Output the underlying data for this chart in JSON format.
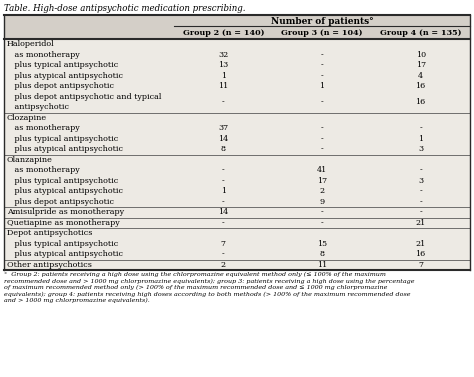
{
  "title": "Table. High-dose antipsychotic medication prescribing.",
  "header_main": "Number of patients°",
  "col_headers": [
    "Group 2 (n = 140)",
    "Group 3 (n = 104)",
    "Group 4 (n = 135)"
  ],
  "rows": [
    {
      "label": "Haloperidol",
      "indent": 0,
      "values": [
        "",
        "",
        ""
      ],
      "is_category": true,
      "separator_before": true
    },
    {
      "label": "   as monotherapy",
      "indent": 1,
      "values": [
        "32",
        "-",
        "10"
      ],
      "is_category": false,
      "separator_before": false
    },
    {
      "label": "   plus typical antipsychotic",
      "indent": 1,
      "values": [
        "13",
        "-",
        "17"
      ],
      "is_category": false,
      "separator_before": false
    },
    {
      "label": "   plus atypical antipsychotic",
      "indent": 1,
      "values": [
        "1",
        "-",
        "4"
      ],
      "is_category": false,
      "separator_before": false
    },
    {
      "label": "   plus depot antipsychotic",
      "indent": 1,
      "values": [
        "11",
        "1",
        "16"
      ],
      "is_category": false,
      "separator_before": false
    },
    {
      "label": "   plus depot antipsychotic and typical\n   antipsychotic",
      "indent": 1,
      "values": [
        "-",
        "-",
        "16"
      ],
      "is_category": false,
      "separator_before": false
    },
    {
      "label": "Clozapine",
      "indent": 0,
      "values": [
        "",
        "",
        ""
      ],
      "is_category": true,
      "separator_before": true
    },
    {
      "label": "   as monotherapy",
      "indent": 1,
      "values": [
        "37",
        "-",
        "-"
      ],
      "is_category": false,
      "separator_before": false
    },
    {
      "label": "   plus typical antipsychotic",
      "indent": 1,
      "values": [
        "14",
        "-",
        "1"
      ],
      "is_category": false,
      "separator_before": false
    },
    {
      "label": "   plus atypical antipsychotic",
      "indent": 1,
      "values": [
        "8",
        "-",
        "3"
      ],
      "is_category": false,
      "separator_before": false
    },
    {
      "label": "Olanzapine",
      "indent": 0,
      "values": [
        "",
        "",
        ""
      ],
      "is_category": true,
      "separator_before": true
    },
    {
      "label": "   as monotherapy",
      "indent": 1,
      "values": [
        "-",
        "41",
        "-"
      ],
      "is_category": false,
      "separator_before": false
    },
    {
      "label": "   plus typical antipsychotic",
      "indent": 1,
      "values": [
        "-",
        "17",
        "3"
      ],
      "is_category": false,
      "separator_before": false
    },
    {
      "label": "   plus atypical antipsychotic",
      "indent": 1,
      "values": [
        "1",
        "2",
        "-"
      ],
      "is_category": false,
      "separator_before": false
    },
    {
      "label": "   plus depot antipsychotic",
      "indent": 1,
      "values": [
        "-",
        "9",
        "-"
      ],
      "is_category": false,
      "separator_before": false
    },
    {
      "label": "Amisulpride as monotherapy",
      "indent": 0,
      "values": [
        "14",
        "-",
        "-"
      ],
      "is_category": false,
      "separator_before": true
    },
    {
      "label": "Quetiapine as monotherapy",
      "indent": 0,
      "values": [
        "-",
        "-",
        "21"
      ],
      "is_category": false,
      "separator_before": true
    },
    {
      "label": "Depot antipsychotics",
      "indent": 0,
      "values": [
        "",
        "",
        ""
      ],
      "is_category": true,
      "separator_before": true
    },
    {
      "label": "   plus typical antipsychotic",
      "indent": 1,
      "values": [
        "7",
        "15",
        "21"
      ],
      "is_category": false,
      "separator_before": false
    },
    {
      "label": "   plus atypical antipsychotic",
      "indent": 1,
      "values": [
        "-",
        "8",
        "16"
      ],
      "is_category": false,
      "separator_before": false
    },
    {
      "label": "Other antipsychotics",
      "indent": 0,
      "values": [
        "2",
        "11",
        "7"
      ],
      "is_category": false,
      "separator_before": true
    }
  ],
  "footnote": "°  Group 2: patients receiving a high dose using the chlorpromazine equivalent method only (≤ 100% of the maximum\nrecommended dose and > 1000 mg chlorpromazine equivalents); group 3: patients receiving a high dose using the percentage\nof maximum recommended method only (> 100% of the maximum recommended dose and ≤ 1000 mg chlorpromazine\nequivalents); group 4: patients receiving high doses according to both methods (> 100% of the maximum recommended dose\nand > 1000 mg chlorpromazine equivalents).",
  "fig_bg": "#ffffff",
  "header_bg": "#d4cfc8",
  "table_bg": "#edeae4",
  "separator_color": "#5a5a5a",
  "thick_line_color": "#2a2a2a",
  "thin_line_color": "#888888"
}
